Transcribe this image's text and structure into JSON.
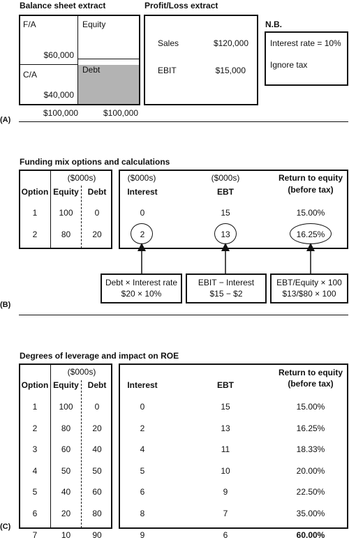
{
  "section_a": {
    "label": "(A)",
    "balance_title": "Balance sheet extract",
    "fa_label": "F/A",
    "fa_value": "$60,000",
    "equity_label": "Equity",
    "ca_label": "C/A",
    "ca_value": "$40,000",
    "debt_label": "Debt",
    "total_assets": "$100,000",
    "total_liabilities": "$100,000",
    "pl_title": "Profit/Loss extract",
    "sales_label": "Sales",
    "sales_value": "$120,000",
    "ebit_label": "EBIT",
    "ebit_value": "$15,000",
    "nb_title": "N.B.",
    "nb_line1": "Interest rate = 10%",
    "nb_line2": "Ignore tax"
  },
  "section_b": {
    "label": "(B)",
    "title": "Funding mix options and calculations",
    "unit_left": "($000s)",
    "unit_interest": "($000s)",
    "unit_ebt": "($000s)",
    "headers": {
      "option": "Option",
      "equity": "Equity",
      "debt": "Debt",
      "interest": "Interest",
      "ebt": "EBT",
      "roe_line1": "Return to equity",
      "roe_line2": "(before tax)"
    },
    "rows": [
      {
        "option": "1",
        "equity": "100",
        "debt": "0",
        "interest": "0",
        "ebt": "15",
        "roe": "15.00%"
      },
      {
        "option": "2",
        "equity": "80",
        "debt": "20",
        "interest": "2",
        "ebt": "13",
        "roe": "16.25%"
      }
    ],
    "notes": [
      {
        "line1": "Debt × Interest rate",
        "line2": "$20 × 10%"
      },
      {
        "line1": "EBIT − Interest",
        "line2": "$15 − $2"
      },
      {
        "line1": "EBT/Equity × 100",
        "line2": "$13/$80 × 100"
      }
    ]
  },
  "section_c": {
    "label": "(C)",
    "title": "Degrees of leverage and impact on ROE",
    "unit_left": "($000s)",
    "headers": {
      "option": "Option",
      "equity": "Equity",
      "debt": "Debt",
      "interest": "Interest",
      "ebt": "EBT",
      "roe_line1": "Return to equity",
      "roe_line2": "(before tax)"
    },
    "rows": [
      {
        "option": "1",
        "equity": "100",
        "debt": "0",
        "interest": "0",
        "ebt": "15",
        "roe": "15.00%"
      },
      {
        "option": "2",
        "equity": "80",
        "debt": "20",
        "interest": "2",
        "ebt": "13",
        "roe": "16.25%"
      },
      {
        "option": "3",
        "equity": "60",
        "debt": "40",
        "interest": "4",
        "ebt": "11",
        "roe": "18.33%"
      },
      {
        "option": "4",
        "equity": "50",
        "debt": "50",
        "interest": "5",
        "ebt": "10",
        "roe": "20.00%"
      },
      {
        "option": "5",
        "equity": "40",
        "debt": "60",
        "interest": "6",
        "ebt": "9",
        "roe": "22.50%"
      },
      {
        "option": "6",
        "equity": "20",
        "debt": "80",
        "interest": "8",
        "ebt": "7",
        "roe": "35.00%"
      },
      {
        "option": "7",
        "equity": "10",
        "debt": "90",
        "interest": "9",
        "ebt": "6",
        "roe": "60.00%"
      }
    ]
  }
}
